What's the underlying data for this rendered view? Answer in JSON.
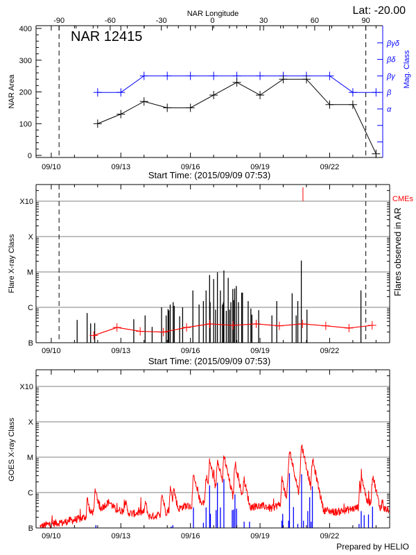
{
  "chart_data": [
    {
      "type": "line",
      "title": "NAR 12415",
      "corner_label": "Lat: -20.00",
      "top_axis_label": "NAR Longitude",
      "top_axis_ticks": [
        -90,
        -60,
        -30,
        0,
        30,
        60,
        90
      ],
      "xlabel": "Start Time: (2015/09/09 07:53)",
      "ylabel": "NAR Area",
      "y2label": "Mag. Class",
      "ylim": [
        0,
        400
      ],
      "yticks": [
        0,
        100,
        200,
        300,
        400
      ],
      "date_tick_labels": [
        "09/10",
        "09/13",
        "09/16",
        "09/19",
        "09/22"
      ],
      "mag_class_levels": [
        "α",
        "β",
        "βγ",
        "βδ",
        "βγδ"
      ],
      "limb_longitudes": [
        -90,
        90
      ],
      "colors": {
        "area": "#000000",
        "mag_class": "#0000ff"
      },
      "series": [
        {
          "x": [
            "09/12 00:00",
            "09/13 00:00",
            "09/14 00:00",
            "09/15 00:00",
            "09/16 00:00",
            "09/17 00:00",
            "09/18 00:00",
            "09/19 00:00",
            "09/20 00:00",
            "09/21 00:00",
            "09/22 00:00",
            "09/23 00:00",
            "09/24 00:00"
          ],
          "area": [
            100,
            130,
            170,
            150,
            150,
            190,
            230,
            190,
            240,
            240,
            160,
            160,
            5
          ],
          "mag_class": [
            "β",
            "β",
            "βγ",
            "βγ",
            "βγ",
            "βγ",
            "βγ",
            "βγ",
            "βγ",
            "βγ",
            "βγ",
            "β",
            "β"
          ]
        }
      ]
    },
    {
      "type": "bar",
      "ylabel": "Flare X-ray Class",
      "y2label": "Flares observed in AR",
      "xlabel": "Start Time: (2015/09/09 07:53)",
      "yscale": "log",
      "class_ticks": [
        "B",
        "C",
        "M",
        "X",
        "X10"
      ],
      "date_tick_labels": [
        "09/10",
        "09/13",
        "09/16",
        "09/19",
        "09/22"
      ],
      "grid": true,
      "cme_label": "CMEs",
      "colors": {
        "flares": "#000000",
        "mean": "#ff0000",
        "cme": "#ff0000",
        "grid": "#999999"
      },
      "cmes": [
        "09/20 20:23"
      ],
      "flares": [
        [
          "09/11 02:47",
          "B4.4"
        ],
        [
          "09/11 13:06",
          "B6.9"
        ],
        [
          "09/11 16:45",
          "B3.5"
        ],
        [
          "09/11 20:56",
          "B3.6"
        ],
        [
          "09/13 13:23",
          "B4.6"
        ],
        [
          "09/14 01:06",
          "B5.9"
        ],
        [
          "09/14 08:22",
          "B2.8"
        ],
        [
          "09/14 18:08",
          "C1.0"
        ],
        [
          "09/14 22:52",
          "B5.9"
        ],
        [
          "09/15 00:50",
          "B8.9"
        ],
        [
          "09/15 01:41",
          "B8.2"
        ],
        [
          "09/15 03:04",
          "C1.2"
        ],
        [
          "09/15 06:09",
          "C1.4"
        ],
        [
          "09/15 07:15",
          "C1.1"
        ],
        [
          "09/15 12:50",
          "B5.6"
        ],
        [
          "09/15 15:55",
          "C1.0"
        ],
        [
          "09/16 02:31",
          "C3.0"
        ],
        [
          "09/16 08:56",
          "C1.2"
        ],
        [
          "09/16 13:24",
          "C1.5"
        ],
        [
          "09/16 16:11",
          "C3.0"
        ],
        [
          "09/16 19:49",
          "C8.2"
        ],
        [
          "09/16 20:23",
          "C1.4"
        ],
        [
          "09/17 00:00",
          "C6.3"
        ],
        [
          "09/17 01:57",
          "B8.6"
        ],
        [
          "09/17 03:55",
          "C9.8"
        ],
        [
          "09/17 06:59",
          "C3.0"
        ],
        [
          "09/17 09:13",
          "C1.2"
        ],
        [
          "09/17 10:03",
          "C1.4"
        ],
        [
          "09/17 10:36",
          "M1.1"
        ],
        [
          "09/17 13:06",
          "B8.0"
        ],
        [
          "09/17 15:04",
          "C6.8"
        ],
        [
          "09/17 16:28",
          "B8.6"
        ],
        [
          "09/17 17:51",
          "C1.4"
        ],
        [
          "09/17 19:49",
          "C3.3"
        ],
        [
          "09/17 20:38",
          "C1.6"
        ],
        [
          "09/17 21:46",
          "C3.4"
        ],
        [
          "09/17 23:27",
          "C4.0"
        ],
        [
          "09/18 01:41",
          "C1.4"
        ],
        [
          "09/18 05:01",
          "C2.6"
        ],
        [
          "09/18 05:51",
          "C2.6"
        ],
        [
          "09/18 11:43",
          "C1.5"
        ],
        [
          "09/18 14:31",
          "B9.3"
        ],
        [
          "09/18 15:37",
          "B6.2"
        ],
        [
          "09/18 22:36",
          "B8.3"
        ],
        [
          "09/19 12:17",
          "B5.9"
        ],
        [
          "09/19 17:18",
          "C1.5"
        ],
        [
          "09/20 09:13",
          "C2.5"
        ],
        [
          "09/20 13:23",
          "B5.9"
        ],
        [
          "09/20 15:04",
          "C1.5"
        ],
        [
          "09/20 18:42",
          "M2.1"
        ],
        [
          "09/21 00:33",
          "B8.6"
        ],
        [
          "09/23 08:23",
          "C3.0"
        ]
      ],
      "mean_class": {
        "x": [
          "09/11 20:00",
          "09/12 20:00",
          "09/13 20:00",
          "09/14 20:00",
          "09/15 20:00",
          "09/16 20:00",
          "09/17 20:00",
          "09/18 20:00",
          "09/19 20:00",
          "09/20 20:00",
          "09/21 20:00",
          "09/22 20:00",
          "09/23 20:00"
        ],
        "values": [
          "B1.6",
          "B2.7",
          "B2.1",
          "B2.0",
          "B2.7",
          "B3.4",
          "B3.1",
          "B3.4",
          "B3.0",
          "B3.4",
          "B3.0",
          "B2.6",
          "B3.1"
        ]
      }
    },
    {
      "type": "line",
      "ylabel": "GOES X-ray Class",
      "yscale": "log",
      "class_ticks": [
        "B",
        "C",
        "M",
        "X",
        "X10"
      ],
      "date_tick_labels": [
        "09/10",
        "09/13",
        "09/16",
        "09/19",
        "09/22"
      ],
      "grid": true,
      "colors": {
        "long_channel": "#ff0000",
        "short_channel": "#0000ff",
        "grid": "#999999"
      },
      "long_channel_background": {
        "start": "09/09 12:00",
        "step_hours": 6,
        "flux": [
          1.05e-07,
          1.2e-07,
          1.3e-07,
          1.4e-07,
          1.4e-07,
          1.6e-07,
          1.7e-07,
          1.8e-07,
          2.1e-07,
          2.8e-07,
          3e-07,
          4.1e-07,
          5.5e-07,
          3.4e-07,
          3.1e-07,
          2.8e-07,
          2.5e-07,
          2.7e-07,
          2.8e-07,
          2.1e-07,
          2.2e-07,
          2.4e-07,
          3e-07,
          4.1e-07,
          3.5e-07,
          4.2e-07,
          4.1e-07,
          4.7e-07,
          5.5e-07,
          5.1e-07,
          4.7e-07,
          5.9e-07,
          6.9e-07,
          7.4e-07,
          4.7e-07,
          5.9e-07,
          3.8e-07,
          4.1e-07,
          4.1e-07,
          4.1e-07,
          3.5e-07,
          4.4e-07,
          4.7e-07,
          4.1e-07,
          7.4e-07,
          6.9e-07,
          5.5e-07,
          4.4e-07,
          3.8e-07,
          3.2e-07,
          3e-07,
          2.8e-07,
          3e-07,
          3.2e-07,
          3.5e-07,
          3.8e-07,
          5.1e-07,
          5.5e-07,
          4.1e-07,
          3.8e-07,
          3.2e-07
        ]
      },
      "long_channel_peaks": [
        [
          "09/11 13:06",
          6.9e-07
        ],
        [
          "09/11 21:29",
          1.35e-06
        ],
        [
          "09/13 04:10",
          6.6e-07
        ],
        [
          "09/14 01:06",
          5.9e-07
        ],
        [
          "09/14 18:08",
          1e-06
        ],
        [
          "09/15 03:04",
          1.35e-06
        ],
        [
          "09/15 06:24",
          1.4e-06
        ],
        [
          "09/16 03:06",
          3.1e-06
        ],
        [
          "09/16 06:59",
          1.35e-06
        ],
        [
          "09/16 16:11",
          3.1e-06
        ],
        [
          "09/16 19:49",
          8.2e-06
        ],
        [
          "09/17 03:55",
          9.5e-06
        ],
        [
          "09/17 07:15",
          3.1e-06
        ],
        [
          "09/17 10:36",
          1.1e-05
        ],
        [
          "09/17 22:03",
          7.1e-06
        ],
        [
          "09/17 23:43",
          4e-06
        ],
        [
          "09/18 06:59",
          2.7e-06
        ],
        [
          "09/19 22:36",
          2.5e-06
        ],
        [
          "09/20 06:26",
          1.6e-05
        ],
        [
          "09/20 18:59",
          2.3e-05
        ],
        [
          "09/21 06:09",
          9.1e-06
        ],
        [
          "09/23 06:59",
          1.7e-06
        ],
        [
          "09/23 08:57",
          3e-06
        ],
        [
          "09/23 20:23",
          3.3e-06
        ],
        [
          "09/24 06:09",
          6.6e-07
        ]
      ],
      "short_channel_peaks": [
        [
          "09/11 22:08",
          1.2e-07
        ],
        [
          "09/15 04:08",
          1.1e-07
        ],
        [
          "09/15 05:48",
          1.2e-07
        ],
        [
          "09/16 03:06",
          3.8e-07
        ],
        [
          "09/16 13:25",
          1.4e-07
        ],
        [
          "09/16 16:11",
          3.8e-07
        ],
        [
          "09/16 19:49",
          1.6e-06
        ],
        [
          "09/16 20:40",
          2.5e-07
        ],
        [
          "09/17 02:31",
          3.2e-07
        ],
        [
          "09/17 03:55",
          1.9e-06
        ],
        [
          "09/17 06:59",
          3.8e-07
        ],
        [
          "09/17 10:36",
          2.4e-06
        ],
        [
          "09/17 19:15",
          3.2e-07
        ],
        [
          "09/17 20:38",
          3.3e-07
        ],
        [
          "09/17 22:03",
          8.9e-07
        ],
        [
          "09/17 23:43",
          3.5e-07
        ],
        [
          "09/18 07:32",
          1.5e-07
        ],
        [
          "09/18 13:07",
          1.5e-07
        ],
        [
          "09/19 22:36",
          1.6e-07
        ],
        [
          "09/19 23:27",
          2.5e-07
        ],
        [
          "09/20 05:35",
          1.6e-07
        ],
        [
          "09/20 06:26",
          3.5e-06
        ],
        [
          "09/20 10:36",
          3.9e-07
        ],
        [
          "09/20 15:04",
          1.3e-07
        ],
        [
          "09/20 18:59",
          3.3e-06
        ],
        [
          "09/20 20:56",
          1.6e-07
        ],
        [
          "09/21 01:23",
          3e-07
        ],
        [
          "09/21 03:22",
          7.4e-07
        ],
        [
          "09/21 04:45",
          1.5e-07
        ],
        [
          "09/21 06:09",
          1.5e-06
        ],
        [
          "09/23 06:26",
          1.3e-07
        ],
        [
          "09/23 08:40",
          3e-07
        ],
        [
          "09/23 11:44",
          2.3e-07
        ],
        [
          "09/23 16:12",
          2.4e-07
        ],
        [
          "09/23 20:23",
          4e-07
        ]
      ]
    }
  ],
  "footer": {
    "credit": "Prepared by HELIO"
  }
}
